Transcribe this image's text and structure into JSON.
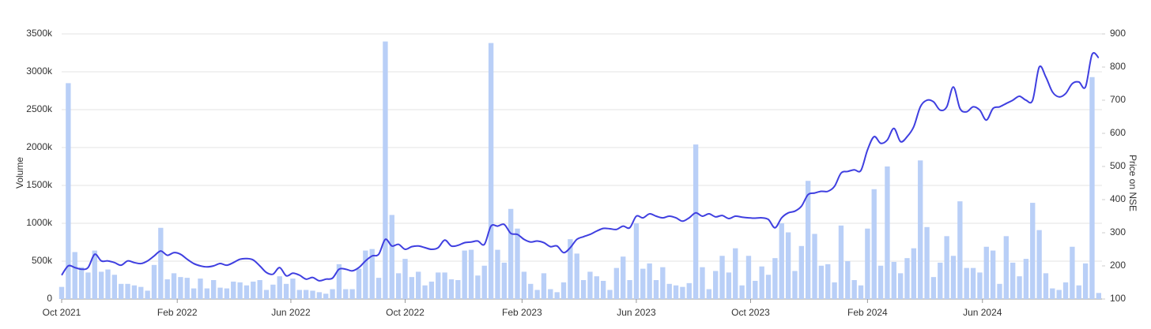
{
  "chart_data": {
    "type": "bar-line",
    "y_label": "Volume",
    "y2_label": "Price on NSE",
    "x": [
      0,
      1,
      2,
      3,
      4,
      5,
      6,
      7,
      8,
      9,
      10,
      11,
      12,
      13,
      14,
      15,
      16,
      17,
      18,
      19,
      20,
      21,
      22,
      23,
      24,
      25,
      26,
      27,
      28,
      29,
      30,
      31,
      32,
      33,
      34,
      35,
      36,
      37,
      38,
      39,
      40,
      41,
      42,
      43,
      44,
      45,
      46,
      47,
      48,
      49,
      50,
      51,
      52,
      53,
      54,
      55,
      56,
      57,
      58,
      59,
      60,
      61,
      62,
      63,
      64,
      65,
      66,
      67,
      68,
      69,
      70,
      71,
      72,
      73,
      74,
      75,
      76,
      77,
      78,
      79,
      80,
      81,
      82,
      83,
      84,
      85,
      86,
      87,
      88,
      89,
      90,
      91,
      92,
      93,
      94,
      95,
      96,
      97,
      98,
      99,
      100,
      101,
      102,
      103,
      104,
      105,
      106,
      107,
      108,
      109,
      110,
      111,
      112,
      113,
      114,
      115,
      116,
      117,
      118,
      119,
      120,
      121,
      122,
      123,
      124,
      125,
      126,
      127,
      128,
      129,
      130,
      131,
      132,
      133,
      134,
      135,
      136,
      137,
      138,
      139,
      140,
      141,
      142,
      143,
      144,
      145,
      146,
      147,
      148,
      149,
      150,
      151,
      152,
      153,
      154,
      155,
      156,
      157
    ],
    "xlim": [
      0,
      157.5
    ],
    "xticks": [
      {
        "value": 0,
        "label": "Oct 2021"
      },
      {
        "value": 17.5,
        "label": "Feb 2022"
      },
      {
        "value": 34.7,
        "label": "Jun 2022"
      },
      {
        "value": 52.0,
        "label": "Oct 2022"
      },
      {
        "value": 69.7,
        "label": "Feb 2023"
      },
      {
        "value": 87.0,
        "label": "Jun 2023"
      },
      {
        "value": 104.3,
        "label": "Oct 2023"
      },
      {
        "value": 122.0,
        "label": "Feb 2024"
      },
      {
        "value": 139.4,
        "label": "Jun 2024"
      }
    ],
    "ylim": [
      0,
      3500
    ],
    "yticks": [
      0,
      {
        "value": 500,
        "label": "500k"
      },
      {
        "value": 1000,
        "label": "1000k"
      },
      {
        "value": 1500,
        "label": "1500k"
      },
      {
        "value": 2000,
        "label": "2000k"
      },
      {
        "value": 2500,
        "label": "2500k"
      },
      {
        "value": 3000,
        "label": "3000k"
      },
      {
        "value": 3500,
        "label": "3500k"
      }
    ],
    "y2lim": [
      100,
      900
    ],
    "y2ticks": [
      100,
      200,
      300,
      400,
      500,
      600,
      700,
      800,
      900
    ],
    "grid": true,
    "series": [
      {
        "kind": "bar",
        "color": "#b9cff7",
        "values": [
          160,
          2850,
          620,
          420,
          350,
          640,
          360,
          390,
          320,
          200,
          200,
          180,
          160,
          110,
          450,
          940,
          260,
          340,
          290,
          280,
          140,
          270,
          140,
          250,
          150,
          140,
          230,
          220,
          180,
          230,
          250,
          120,
          190,
          300,
          200,
          270,
          120,
          120,
          110,
          90,
          70,
          130,
          460,
          130,
          130,
          400,
          640,
          660,
          280,
          3400,
          1110,
          340,
          530,
          290,
          360,
          180,
          230,
          350,
          350,
          260,
          250,
          640,
          650,
          310,
          440,
          3380,
          650,
          480,
          1190,
          930,
          360,
          200,
          120,
          340,
          130,
          90,
          220,
          790,
          600,
          250,
          360,
          300,
          240,
          120,
          410,
          560,
          250,
          1000,
          400,
          470,
          250,
          420,
          200,
          180,
          160,
          210,
          2040,
          420,
          130,
          370,
          570,
          350,
          670,
          180,
          570,
          240,
          430,
          320,
          540,
          1000,
          880,
          370,
          700,
          1560,
          860,
          440,
          460,
          220,
          970,
          500,
          250,
          180,
          930,
          1450,
          440,
          1750,
          490,
          340,
          540,
          670,
          1830,
          950,
          290,
          480,
          830,
          570,
          1290,
          410,
          410,
          350,
          690,
          640,
          200,
          830,
          480,
          300,
          530,
          1270,
          910,
          340,
          140,
          120,
          220,
          690,
          180,
          470,
          2930,
          80
        ]
      },
      {
        "kind": "line",
        "axis": "y2",
        "color": "#3f3fe0",
        "values": [
          172,
          200,
          195,
          190,
          195,
          235,
          215,
          215,
          210,
          202,
          215,
          210,
          207,
          215,
          230,
          245,
          232,
          240,
          235,
          220,
          207,
          200,
          197,
          200,
          207,
          202,
          210,
          220,
          222,
          218,
          200,
          180,
          175,
          195,
          170,
          178,
          172,
          160,
          165,
          155,
          160,
          163,
          190,
          190,
          185,
          195,
          215,
          230,
          235,
          280,
          260,
          265,
          250,
          258,
          260,
          255,
          250,
          255,
          278,
          260,
          262,
          270,
          272,
          275,
          265,
          320,
          320,
          325,
          298,
          295,
          280,
          272,
          275,
          270,
          258,
          260,
          240,
          255,
          280,
          288,
          295,
          305,
          313,
          312,
          310,
          320,
          315,
          350,
          345,
          357,
          350,
          345,
          350,
          345,
          335,
          345,
          360,
          350,
          357,
          348,
          352,
          343,
          350,
          347,
          345,
          344,
          345,
          340,
          315,
          345,
          360,
          365,
          380,
          415,
          420,
          425,
          425,
          440,
          480,
          485,
          490,
          488,
          550,
          590,
          570,
          580,
          615,
          575,
          590,
          620,
          680,
          700,
          695,
          670,
          680,
          740,
          675,
          665,
          680,
          670,
          640,
          675,
          680,
          690,
          700,
          712,
          700,
          700,
          800,
          770,
          725,
          710,
          720,
          750,
          755,
          740,
          838,
          828
        ]
      }
    ]
  }
}
